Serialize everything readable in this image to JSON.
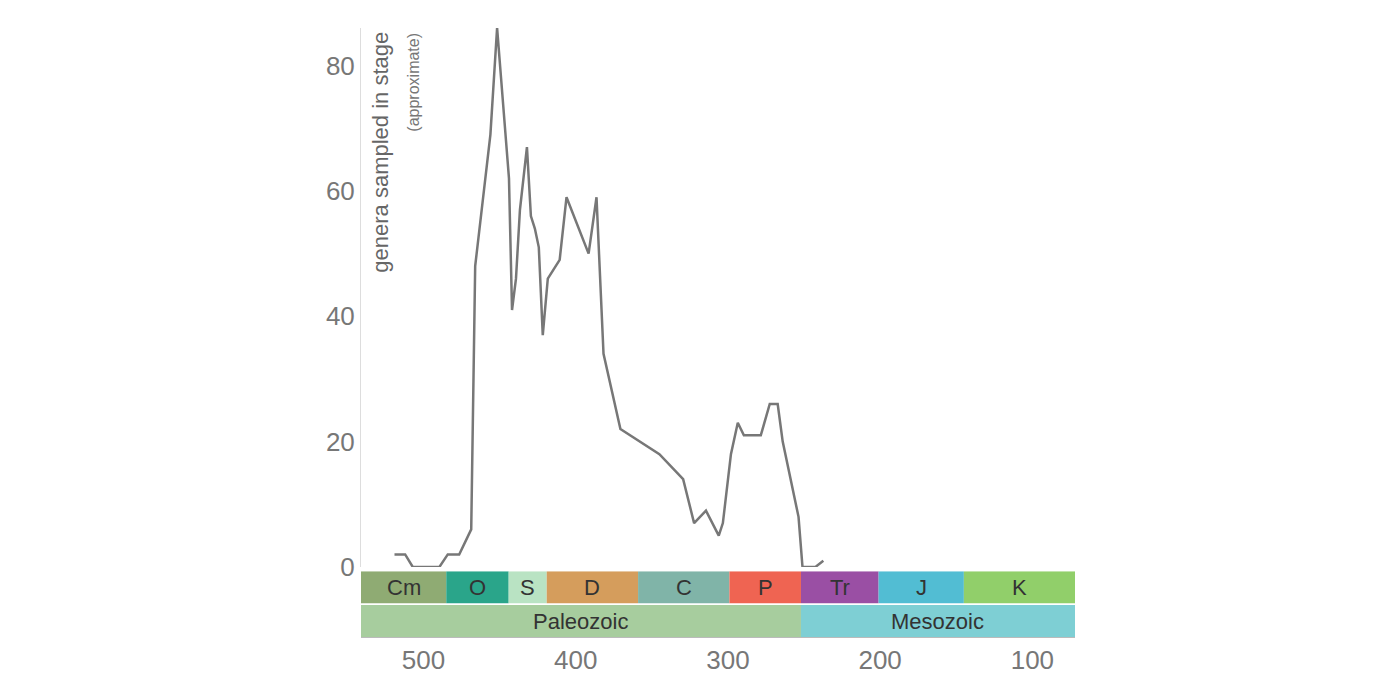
{
  "chart_data": {
    "type": "line",
    "ylabel": "genera sampled in stage",
    "ylabel_note": "(approximate)",
    "x": [
      519,
      512,
      507,
      489.5,
      484,
      476.5,
      468.6,
      466,
      456,
      451.6,
      443.8,
      441.8,
      439.2,
      436.6,
      432,
      429.4,
      426.8,
      424.2,
      421.6,
      418.3,
      410.5,
      406,
      391.5,
      386.3,
      381.7,
      370.6,
      345,
      329.4,
      322.2,
      314.4,
      306,
      303.3,
      298,
      293.5,
      289.5,
      278.4,
      272.5,
      267.3,
      264,
      258.8,
      253.6,
      251,
      242.5,
      237.3
    ],
    "values": [
      2,
      2,
      0,
      0,
      2,
      2,
      6,
      48,
      69,
      86,
      62,
      41,
      46,
      57,
      67,
      56,
      54,
      51,
      37,
      46,
      49,
      59,
      50,
      59,
      34,
      22,
      18,
      14,
      7,
      9,
      5,
      7,
      18,
      23,
      21,
      21,
      26,
      26,
      20,
      14,
      8,
      0,
      0,
      1
    ],
    "color": "#777777",
    "xlim": [
      541,
      72
    ],
    "xticks": [
      500,
      400,
      300,
      200,
      100
    ],
    "ylim": [
      0,
      86
    ],
    "yticks": [
      0,
      20,
      40,
      60,
      80
    ],
    "grid": false,
    "periods": [
      {
        "label": "Cm",
        "start": 541,
        "end": 485,
        "color": "#8fab73"
      },
      {
        "label": "O",
        "start": 485,
        "end": 444,
        "color": "#2aa58a"
      },
      {
        "label": "S",
        "start": 444,
        "end": 419,
        "color": "#b9e3c3"
      },
      {
        "label": "D",
        "start": 419,
        "end": 359,
        "color": "#d59d5c"
      },
      {
        "label": "C",
        "start": 359,
        "end": 299,
        "color": "#80b4a8"
      },
      {
        "label": "P",
        "start": 299,
        "end": 252,
        "color": "#ef6452"
      },
      {
        "label": "Tr",
        "start": 252,
        "end": 201,
        "color": "#9a4fa4"
      },
      {
        "label": "J",
        "start": 201,
        "end": 145,
        "color": "#52bdd3"
      },
      {
        "label": "K",
        "start": 145,
        "end": 72,
        "color": "#91cf6a"
      }
    ],
    "eras": [
      {
        "label": "Paleozoic",
        "start": 541,
        "end": 252,
        "color": "#a7cd9e"
      },
      {
        "label": "Mesozoic",
        "start": 252,
        "end": 72,
        "color": "#7ecfd4"
      }
    ]
  }
}
